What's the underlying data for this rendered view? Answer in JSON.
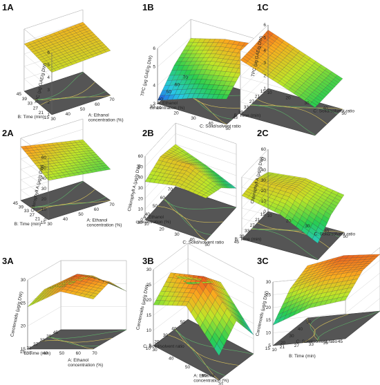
{
  "chart_data": [
    {
      "id": "1A",
      "type": "surface",
      "panel_label": "1A",
      "zlabel": "TPC (μg GAE/g DW)",
      "z_ticks": [
        "1",
        "2",
        "3",
        "4",
        "5",
        "6"
      ],
      "zlim": [
        1,
        6
      ],
      "axis_x": {
        "label": [
          "A: Ethanol",
          "concentration (%)"
        ],
        "ticks": [
          "30",
          "40",
          "50",
          "60",
          "70"
        ]
      },
      "axis_y": {
        "label": [
          "B: Time (min)"
        ],
        "ticks": [
          "15",
          "21",
          "27",
          "33",
          "39",
          "45"
        ]
      },
      "surface_z": [
        [
          4.4,
          4.5,
          4.6
        ],
        [
          4.6,
          4.7,
          4.8
        ],
        [
          4.8,
          4.9,
          5.0
        ]
      ]
    },
    {
      "id": "1B",
      "type": "surface",
      "panel_label": "1B",
      "zlabel": "TPC (μg GAE/g DW)",
      "z_ticks": [
        "3",
        "4",
        "5",
        "6"
      ],
      "zlim": [
        3,
        6.5
      ],
      "axis_x": {
        "label": [
          "C: Solid/solvent ratio"
        ],
        "ticks": [
          "10",
          "20",
          "30",
          "40",
          "50"
        ]
      },
      "axis_y": {
        "label": [
          "A: Ethanol",
          "concentration (%)"
        ],
        "ticks": [
          "30",
          "40",
          "50",
          "60",
          "70"
        ]
      },
      "surface_z": [
        [
          3.2,
          4.0,
          4.6
        ],
        [
          4.5,
          5.2,
          5.6
        ],
        [
          5.3,
          5.9,
          6.2
        ]
      ]
    },
    {
      "id": "1C",
      "type": "surface",
      "panel_label": "1C",
      "zlabel": "TPC (μg GAE/g DW)",
      "z_ticks": [
        "1",
        "2",
        "3",
        "4",
        "5",
        "6"
      ],
      "zlim": [
        1,
        6
      ],
      "axis_x": {
        "label": [
          "C: Solid/solvent ratio"
        ],
        "ticks": [
          "10",
          "20",
          "30",
          "40",
          "50"
        ]
      },
      "axis_y": {
        "label": [
          "B: Time (min)"
        ],
        "ticks": [
          "15",
          "21",
          "27",
          "33",
          "39",
          "45"
        ]
      },
      "surface_z": [
        [
          5.6,
          4.5,
          3.4
        ],
        [
          5.4,
          4.4,
          3.3
        ],
        [
          5.3,
          4.3,
          3.2
        ]
      ]
    },
    {
      "id": "2A",
      "type": "surface",
      "panel_label": "2A",
      "zlabel": "Chlorophyll A (μg/g DW)",
      "z_ticks": [
        "0",
        "10",
        "20",
        "30",
        "40",
        "50",
        "60"
      ],
      "zlim": [
        0,
        60
      ],
      "axis_x": {
        "label": [
          "A: Ethanol",
          "concentration (%)"
        ],
        "ticks": [
          "30",
          "40",
          "50",
          "60",
          "70"
        ]
      },
      "axis_y": {
        "label": [
          "B: Time (min)"
        ],
        "ticks": [
          "15",
          "21",
          "27",
          "33",
          "39",
          "45"
        ]
      },
      "surface_z": [
        [
          38,
          34,
          30
        ],
        [
          45,
          40,
          35
        ],
        [
          52,
          46,
          40
        ]
      ]
    },
    {
      "id": "2B",
      "type": "surface",
      "panel_label": "2B",
      "zlabel": "Chlorophyll A (μg/g DW)",
      "z_ticks": [
        "0",
        "10",
        "20",
        "30",
        "40",
        "50",
        "60"
      ],
      "zlim": [
        0,
        60
      ],
      "axis_x": {
        "label": [
          "C: Solid/solvent ratio"
        ],
        "ticks": [
          "10",
          "20",
          "30",
          "40",
          "50"
        ]
      },
      "axis_y": {
        "label": [
          "A: Ethanol",
          "concentration (%)"
        ],
        "ticks": [
          "30",
          "40",
          "50",
          "60",
          "70"
        ]
      },
      "surface_z": [
        [
          36,
          42,
          40
        ],
        [
          44,
          46,
          34
        ],
        [
          40,
          30,
          18
        ]
      ]
    },
    {
      "id": "2C",
      "type": "surface",
      "panel_label": "2C",
      "zlabel": "Chlorophyll A (μg/g DW)",
      "z_ticks": [
        "0",
        "10",
        "20",
        "30",
        "40",
        "50",
        "60"
      ],
      "zlim": [
        0,
        60
      ],
      "axis_x": {
        "label": [
          "C: Solid/solvent ratio"
        ],
        "ticks": [
          "10",
          "20",
          "30",
          "40",
          "50"
        ]
      },
      "axis_y": {
        "label": [
          "B: Time (min)"
        ],
        "ticks": [
          "15",
          "21",
          "27",
          "33",
          "39",
          "45"
        ]
      },
      "surface_z": [
        [
          38,
          42,
          36
        ],
        [
          44,
          44,
          30
        ],
        [
          42,
          34,
          16
        ]
      ]
    },
    {
      "id": "3A",
      "type": "surface",
      "panel_label": "3A",
      "zlabel": "Carotenoids (μg/g DW)",
      "z_ticks": [
        "15",
        "20",
        "25",
        "30"
      ],
      "zlim": [
        15,
        33
      ],
      "axis_x": {
        "label": [
          "A: Ethanol",
          "concentration (%)"
        ],
        "ticks": [
          "30",
          "40",
          "50",
          "60",
          "70"
        ]
      },
      "axis_y": {
        "label": [
          "B: Time (min)"
        ],
        "ticks": [
          "15",
          "21",
          "27",
          "33",
          "39",
          "45"
        ]
      },
      "surface_z": [
        [
          26,
          30,
          28
        ],
        [
          28,
          32,
          30
        ],
        [
          26,
          29,
          25
        ]
      ]
    },
    {
      "id": "3B",
      "type": "surface",
      "panel_label": "3B",
      "zlabel": "Carotenoids (μg/g DW)",
      "z_ticks": [
        "5",
        "10",
        "15",
        "20",
        "25",
        "30"
      ],
      "zlim": [
        5,
        33
      ],
      "axis_x": {
        "label": [
          "A: Ethanol",
          "concentration (%)"
        ],
        "ticks": [
          "30",
          "40",
          "50",
          "60",
          "70"
        ]
      },
      "axis_y": {
        "label": [
          "C: Solid/solvent ratio"
        ],
        "ticks": [
          "10",
          "20",
          "30",
          "40",
          "50"
        ]
      },
      "surface_z": [
        [
          20,
          26,
          14
        ],
        [
          27,
          32,
          22
        ],
        [
          18,
          25,
          12
        ]
      ]
    },
    {
      "id": "3C",
      "type": "surface",
      "panel_label": "3C",
      "zlabel": "Carotenoids (μg/g DW)",
      "z_ticks": [
        "5",
        "10",
        "15",
        "20",
        "25",
        "30"
      ],
      "zlim": [
        5,
        33
      ],
      "axis_x": {
        "label": [
          "C: Solid/solvent ratio"
        ],
        "ticks": [
          "10",
          "20",
          "30",
          "40",
          "50"
        ]
      },
      "axis_y": {
        "label": [
          "B: Time (min)"
        ],
        "ticks": [
          "15",
          "21",
          "27",
          "33",
          "39",
          "45"
        ]
      },
      "surface_z": [
        [
          14,
          24,
          28
        ],
        [
          20,
          28,
          31
        ],
        [
          22,
          29,
          30
        ]
      ]
    }
  ]
}
